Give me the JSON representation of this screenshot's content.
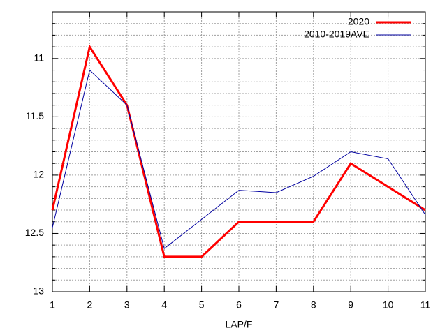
{
  "chart_data": {
    "type": "line",
    "xlabel": "LAP/F",
    "x": [
      1,
      2,
      3,
      4,
      5,
      6,
      7,
      8,
      9,
      10,
      11
    ],
    "series": [
      {
        "name": "2020",
        "color": "#ff0000",
        "line_width": 3,
        "values": [
          12.3,
          10.9,
          11.4,
          12.7,
          12.7,
          12.4,
          12.4,
          12.4,
          11.9,
          12.1,
          12.3
        ]
      },
      {
        "name": "2010-2019AVE",
        "color": "#0000a0",
        "line_width": 1,
        "values": [
          12.45,
          11.1,
          11.4,
          12.63,
          12.38,
          12.13,
          12.15,
          12.01,
          11.8,
          11.86,
          12.34
        ]
      }
    ],
    "xlim": [
      1,
      11
    ],
    "xticks": [
      1,
      2,
      3,
      4,
      5,
      6,
      7,
      8,
      9,
      10,
      11
    ],
    "ylim": [
      13,
      10.6
    ],
    "yticks": [
      11,
      11.5,
      12,
      12.5,
      13
    ],
    "y_minor_ticks": [
      10.7,
      10.8,
      10.9,
      11.1,
      11.2,
      11.3,
      11.4,
      11.6,
      11.7,
      11.8,
      11.9,
      12.1,
      12.2,
      12.3,
      12.4,
      12.6,
      12.7,
      12.8,
      12.9
    ],
    "grid": true,
    "legend": "top-right"
  }
}
